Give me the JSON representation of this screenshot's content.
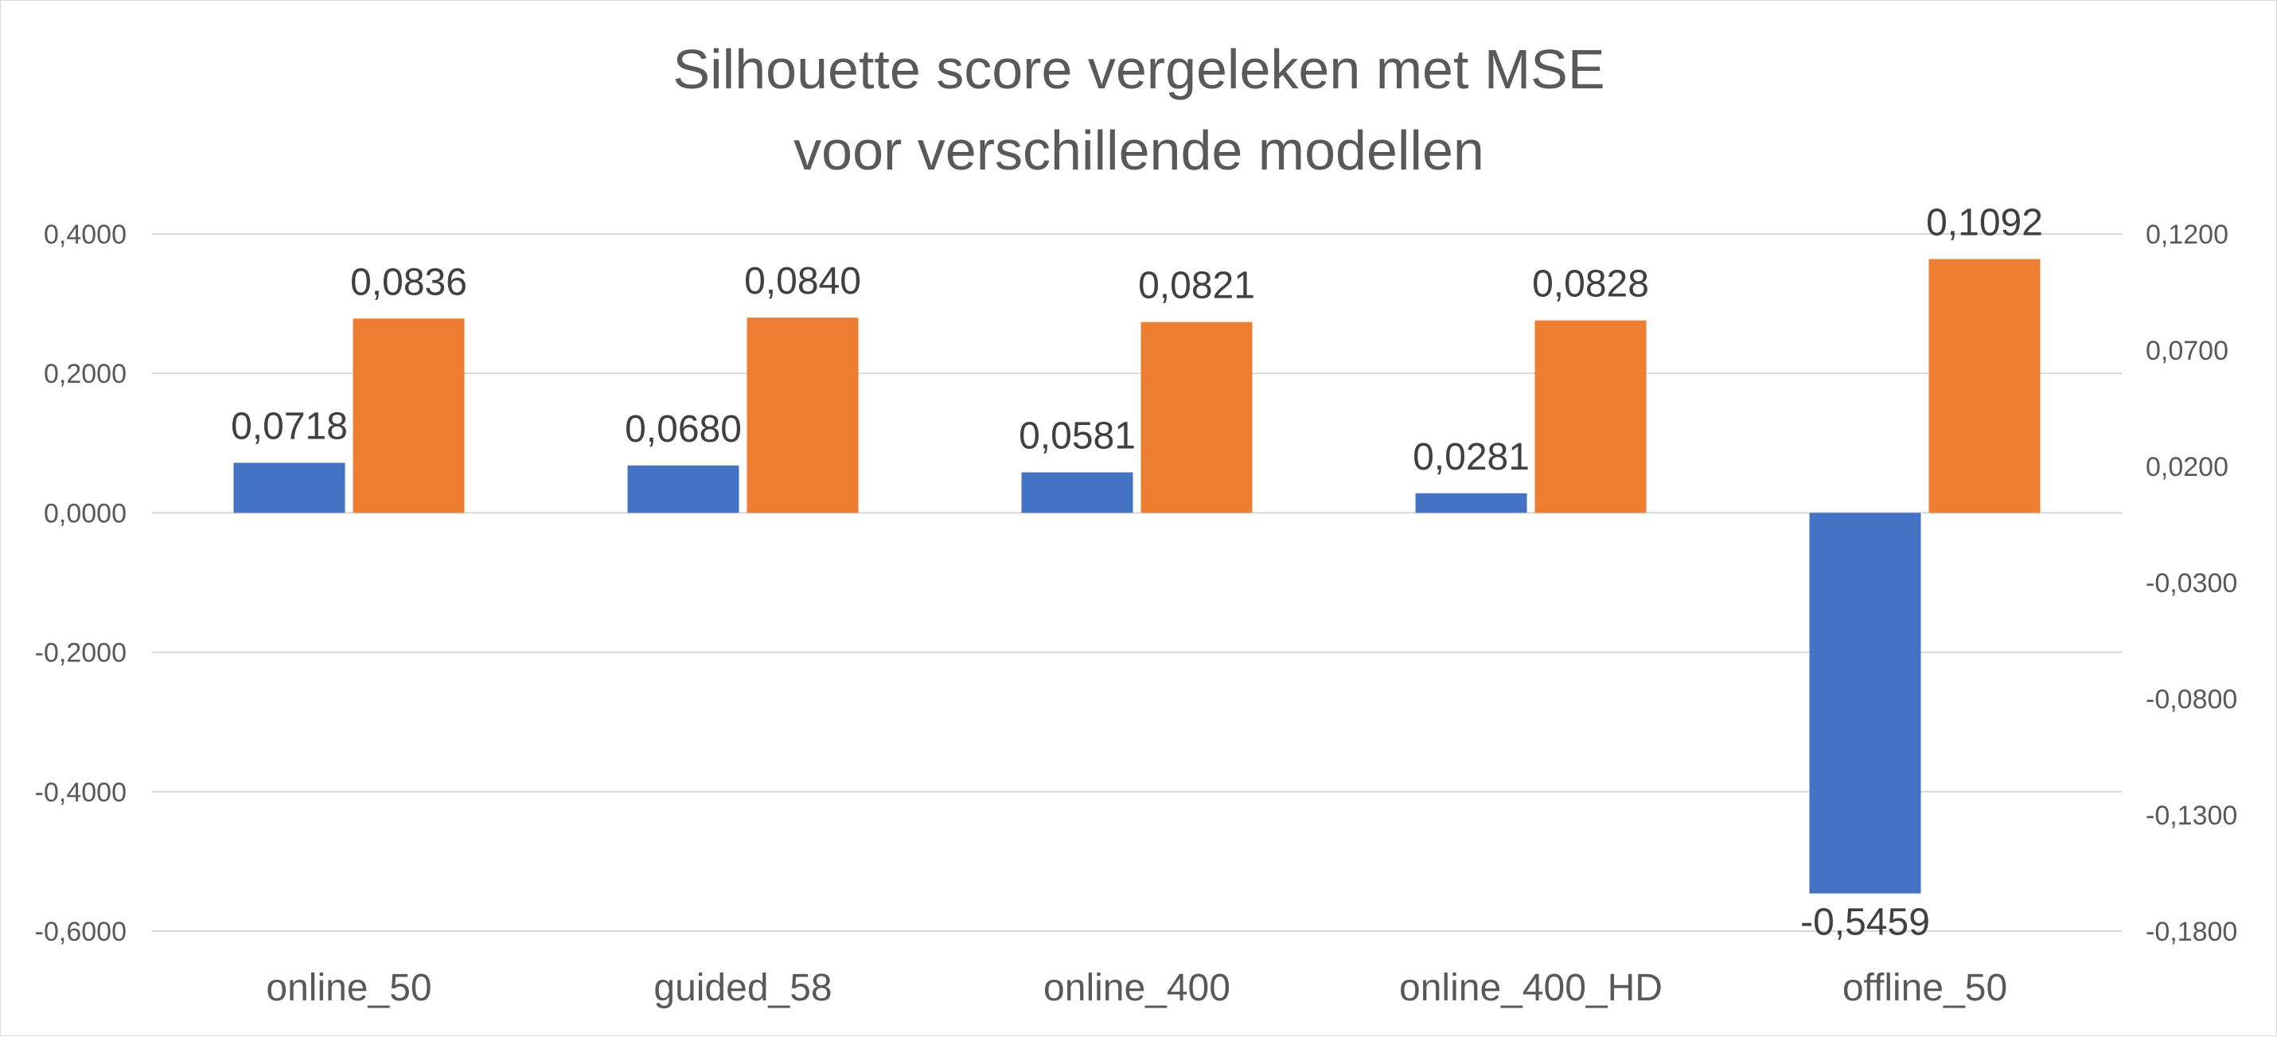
{
  "chart_data": {
    "type": "bar",
    "title_lines": [
      "Silhouette score vergeleken met MSE",
      "voor verschillende modellen"
    ],
    "categories": [
      "online_50",
      "guided_58",
      "online_400",
      "online_400_HD",
      "offline_50"
    ],
    "series": [
      {
        "axis": "left",
        "color": "#4472C4",
        "values": [
          0.0718,
          0.068,
          0.0581,
          0.0281,
          -0.5459
        ],
        "labels": [
          "0,0718",
          "0,0680",
          "0,0581",
          "0,0281",
          "-0,5459"
        ]
      },
      {
        "axis": "right",
        "color": "#ED7D31",
        "values": [
          0.0836,
          0.084,
          0.0821,
          0.0828,
          0.1092
        ],
        "labels": [
          "0,0836",
          "0,0840",
          "0,0821",
          "0,0828",
          "0,1092"
        ]
      }
    ],
    "left_axis": {
      "ylim": [
        -0.6,
        0.4
      ],
      "ticks": [
        0.4,
        0.2,
        0.0,
        -0.2,
        -0.4,
        -0.6
      ],
      "tick_labels": [
        "0,4000",
        "0,2000",
        "0,0000",
        "-0,2000",
        "-0,4000",
        "-0,6000"
      ]
    },
    "right_axis": {
      "ylim": [
        -0.18,
        0.12
      ],
      "ticks": [
        0.12,
        0.07,
        0.02,
        -0.03,
        -0.08,
        -0.13,
        -0.18
      ],
      "tick_labels": [
        "0,1200",
        "0,0700",
        "0,0200",
        "-0,0300",
        "-0,0800",
        "-0,1300",
        "-0,1800"
      ]
    },
    "grid": true,
    "legend": "none"
  }
}
